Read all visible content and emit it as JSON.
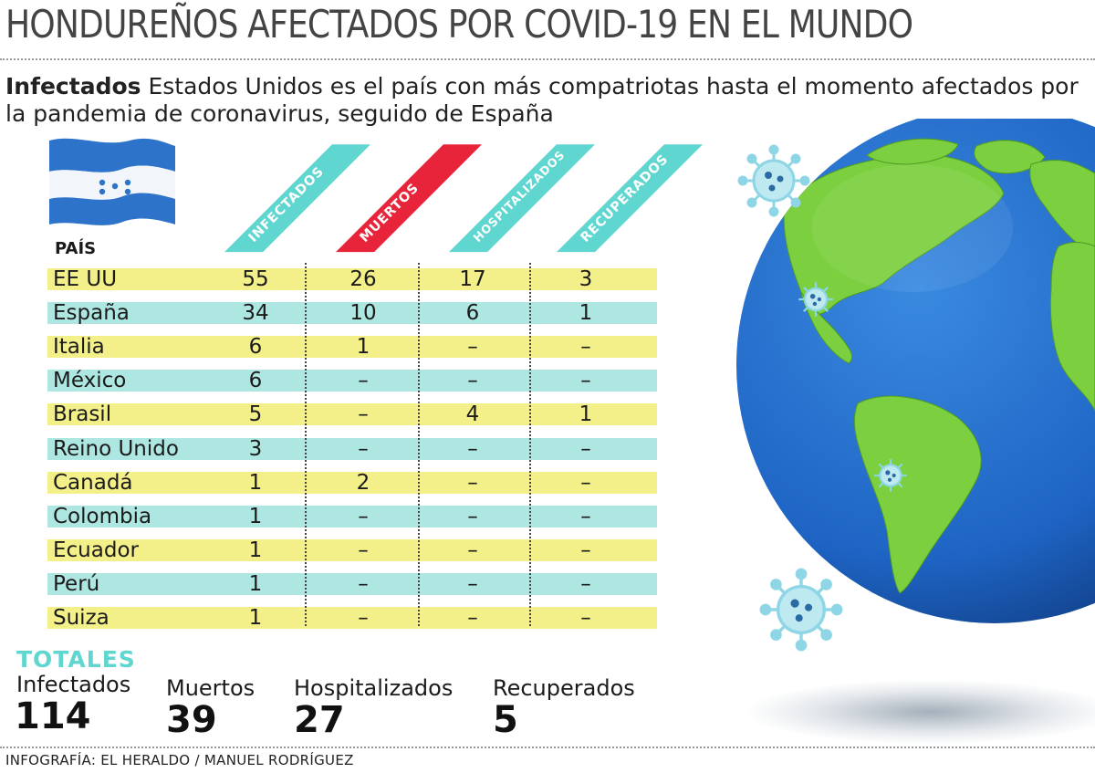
{
  "title": "HONDUREÑOS AFECTADOS POR COVID-19 EN EL MUNDO",
  "subtitle": {
    "lead": "Infectados",
    "text": " Estados Unidos es el país con más compatriotas hasta el momento afectados por la pandemia de coronavirus, seguido de España"
  },
  "colors": {
    "teal": "#5fd6cf",
    "red": "#e8243a",
    "yellow": "#f4f089",
    "row_teal": "#aee7e2",
    "flag_blue": "#2c73c9",
    "ocean": "#1e64c4",
    "land": "#7ccf3f"
  },
  "chart_data": {
    "type": "table",
    "row_header": "PAÍS",
    "columns": [
      "INFECTADOS",
      "MUERTOS",
      "HOSPITALIZADOS",
      "RECUPERADOS"
    ],
    "rows": [
      {
        "country": "EE UU",
        "values": [
          "55",
          "26",
          "17",
          "3"
        ]
      },
      {
        "country": "España",
        "values": [
          "34",
          "10",
          "6",
          "1"
        ]
      },
      {
        "country": "Italia",
        "values": [
          "6",
          "1",
          "–",
          "–"
        ]
      },
      {
        "country": "México",
        "values": [
          "6",
          "–",
          "–",
          "–"
        ]
      },
      {
        "country": "Brasil",
        "values": [
          "5",
          "–",
          "4",
          "1"
        ]
      },
      {
        "country": "Reino Unido",
        "values": [
          "3",
          "–",
          "–",
          "–"
        ]
      },
      {
        "country": "Canadá",
        "values": [
          "1",
          "2",
          "–",
          "–"
        ]
      },
      {
        "country": "Colombia",
        "values": [
          "1",
          "–",
          "–",
          "–"
        ]
      },
      {
        "country": "Ecuador",
        "values": [
          "1",
          "–",
          "–",
          "–"
        ]
      },
      {
        "country": "Perú",
        "values": [
          "1",
          "–",
          "–",
          "–"
        ]
      },
      {
        "country": "Suiza",
        "values": [
          "1",
          "–",
          "–",
          "–"
        ]
      }
    ]
  },
  "totals": {
    "label": "TOTALES",
    "items": [
      {
        "name": "Infectados",
        "value": "114"
      },
      {
        "name": "Muertos",
        "value": "39"
      },
      {
        "name": "Hospitalizados",
        "value": "27"
      },
      {
        "name": "Recuperados",
        "value": "5"
      }
    ]
  },
  "credit": "INFOGRAFÍA: EL HERALDO / MANUEL RODRÍGUEZ",
  "icons": [
    "honduras-flag-icon",
    "globe-icon",
    "coronavirus-icon"
  ]
}
